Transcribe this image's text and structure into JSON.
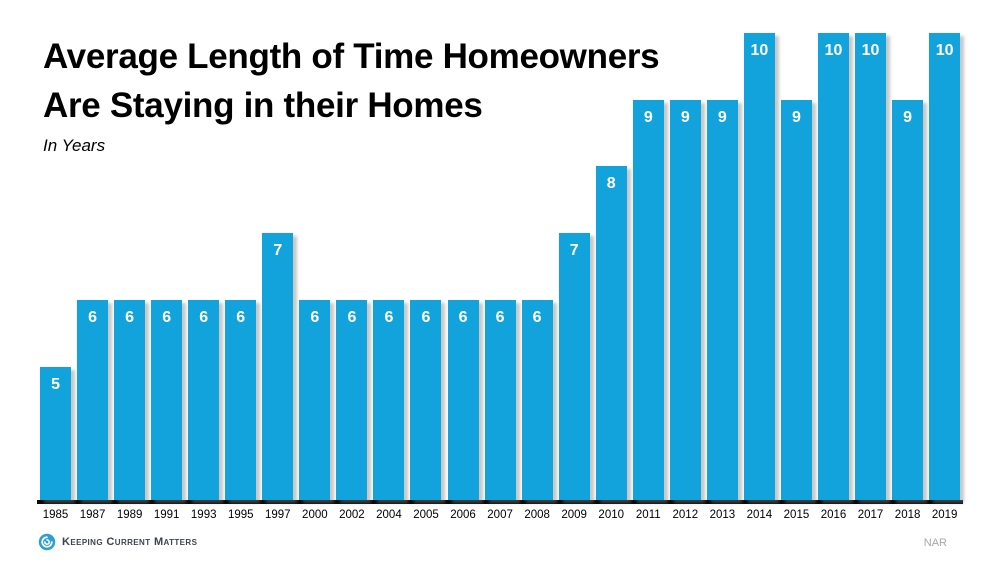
{
  "header": {
    "title": "Average Length of Time Homeowners\nAre Staying in their Homes",
    "subtitle": "In Years"
  },
  "chart_data": {
    "type": "bar",
    "title": "Average Length of Time Homeowners Are Staying in their Homes",
    "subtitle": "In Years",
    "categories": [
      "1985",
      "1987",
      "1989",
      "1991",
      "1993",
      "1995",
      "1997",
      "2000",
      "2002",
      "2004",
      "2005",
      "2006",
      "2007",
      "2008",
      "2009",
      "2010",
      "2011",
      "2012",
      "2013",
      "2014",
      "2015",
      "2016",
      "2017",
      "2018",
      "2019"
    ],
    "values": [
      5,
      6,
      6,
      6,
      6,
      6,
      7,
      6,
      6,
      6,
      6,
      6,
      6,
      6,
      7,
      8,
      9,
      9,
      9,
      10,
      9,
      10,
      10,
      9,
      10
    ],
    "xlabel": "",
    "ylabel": "",
    "ylim": [
      3,
      10
    ],
    "baseline_value": 3,
    "grid": false,
    "legend": false,
    "bar_color": "#12a3dd",
    "value_label_color": "#ffffff",
    "axis_color": "#0a0a0a"
  },
  "footer": {
    "logo_text": "Keeping Current Matters",
    "source": "NAR"
  }
}
